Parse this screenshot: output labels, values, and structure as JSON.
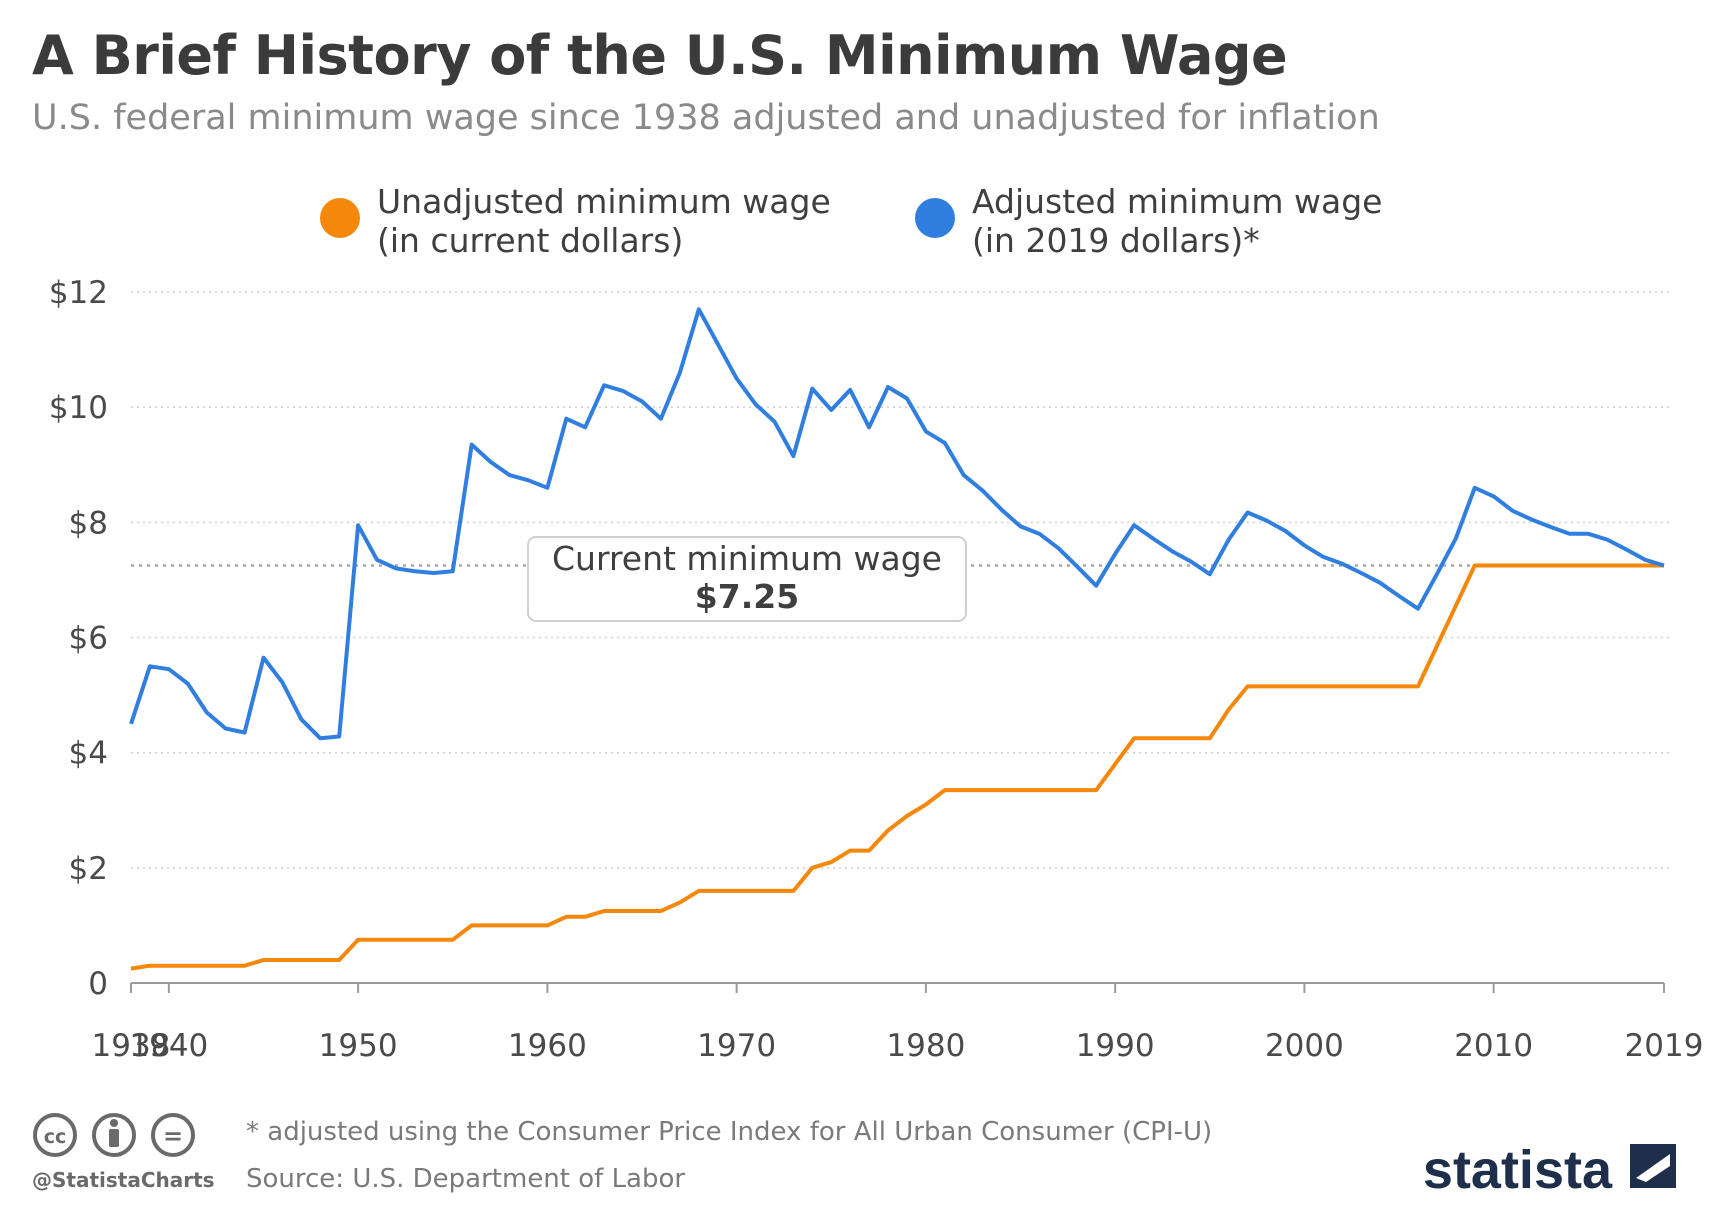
{
  "title": "A Brief History of the U.S. Minimum Wage",
  "subtitle": "U.S. federal minimum wage since 1938 adjusted and unadjusted for inflation",
  "colors": {
    "unadjusted": "#f5870a",
    "adjusted": "#2f7ee0",
    "grid": "#cfcfcf",
    "text": "#4a4a4a",
    "brand": "#1d2f4b"
  },
  "chart_data": {
    "type": "line",
    "title": "A Brief History of the U.S. Minimum Wage",
    "xlabel": "",
    "ylabel": "",
    "xlim": [
      1938,
      2019
    ],
    "ylim": [
      0,
      12
    ],
    "y_ticks": [
      0,
      2,
      4,
      6,
      8,
      10,
      12
    ],
    "y_tick_labels": [
      "0",
      "$2",
      "$4",
      "$6",
      "$8",
      "$10",
      "$12"
    ],
    "x_ticks": [
      1938,
      1940,
      1950,
      1960,
      1970,
      1980,
      1990,
      2000,
      2010,
      2019
    ],
    "x_tick_labels": [
      "1938",
      "1940",
      "1950",
      "1960",
      "1970",
      "1980",
      "1990",
      "2000",
      "2010",
      "2019"
    ],
    "grid": "horizontal dotted",
    "legend_position": "top",
    "series": [
      {
        "name": "Unadjusted minimum wage (in current dollars)",
        "legend_lines": [
          "Unadjusted minimum wage",
          "(in current dollars)"
        ],
        "color": "#f5870a",
        "x": [
          1938,
          1939,
          1940,
          1941,
          1942,
          1943,
          1944,
          1945,
          1946,
          1947,
          1948,
          1949,
          1950,
          1951,
          1952,
          1953,
          1954,
          1955,
          1956,
          1957,
          1958,
          1959,
          1960,
          1961,
          1962,
          1963,
          1964,
          1965,
          1966,
          1967,
          1968,
          1969,
          1970,
          1971,
          1972,
          1973,
          1974,
          1975,
          1976,
          1977,
          1978,
          1979,
          1980,
          1981,
          1982,
          1983,
          1984,
          1985,
          1986,
          1987,
          1988,
          1989,
          1990,
          1991,
          1992,
          1993,
          1994,
          1995,
          1996,
          1997,
          1998,
          1999,
          2000,
          2001,
          2002,
          2003,
          2004,
          2005,
          2006,
          2007,
          2008,
          2009,
          2010,
          2011,
          2012,
          2013,
          2014,
          2015,
          2016,
          2017,
          2018,
          2019
        ],
        "values": [
          0.25,
          0.3,
          0.3,
          0.3,
          0.3,
          0.3,
          0.3,
          0.4,
          0.4,
          0.4,
          0.4,
          0.4,
          0.75,
          0.75,
          0.75,
          0.75,
          0.75,
          0.75,
          1.0,
          1.0,
          1.0,
          1.0,
          1.0,
          1.15,
          1.15,
          1.25,
          1.25,
          1.25,
          1.25,
          1.4,
          1.6,
          1.6,
          1.6,
          1.6,
          1.6,
          1.6,
          2.0,
          2.1,
          2.3,
          2.3,
          2.65,
          2.9,
          3.1,
          3.35,
          3.35,
          3.35,
          3.35,
          3.35,
          3.35,
          3.35,
          3.35,
          3.35,
          3.8,
          4.25,
          4.25,
          4.25,
          4.25,
          4.25,
          4.75,
          5.15,
          5.15,
          5.15,
          5.15,
          5.15,
          5.15,
          5.15,
          5.15,
          5.15,
          5.15,
          5.85,
          6.55,
          7.25,
          7.25,
          7.25,
          7.25,
          7.25,
          7.25,
          7.25,
          7.25,
          7.25,
          7.25,
          7.25
        ]
      },
      {
        "name": "Adjusted minimum wage (in 2019 dollars)*",
        "legend_lines": [
          "Adjusted minimum wage",
          "(in 2019 dollars)*"
        ],
        "color": "#2f7ee0",
        "x": [
          1938,
          1939,
          1940,
          1941,
          1942,
          1943,
          1944,
          1945,
          1946,
          1947,
          1948,
          1949,
          1950,
          1951,
          1952,
          1953,
          1954,
          1955,
          1956,
          1957,
          1958,
          1959,
          1960,
          1961,
          1962,
          1963,
          1964,
          1965,
          1966,
          1967,
          1968,
          1969,
          1970,
          1971,
          1972,
          1973,
          1974,
          1975,
          1976,
          1977,
          1978,
          1979,
          1980,
          1981,
          1982,
          1983,
          1984,
          1985,
          1986,
          1987,
          1988,
          1989,
          1990,
          1991,
          1992,
          1993,
          1994,
          1995,
          1996,
          1997,
          1998,
          1999,
          2000,
          2001,
          2002,
          2003,
          2004,
          2005,
          2006,
          2007,
          2008,
          2009,
          2010,
          2011,
          2012,
          2013,
          2014,
          2015,
          2016,
          2017,
          2018,
          2019
        ],
        "values": [
          4.5,
          5.5,
          5.45,
          5.2,
          4.7,
          4.42,
          4.35,
          5.65,
          5.22,
          4.58,
          4.25,
          4.28,
          7.95,
          7.35,
          7.2,
          7.15,
          7.12,
          7.15,
          9.35,
          9.05,
          8.82,
          8.73,
          8.6,
          9.8,
          9.65,
          10.38,
          10.28,
          10.1,
          9.8,
          10.6,
          11.7,
          11.1,
          10.5,
          10.05,
          9.75,
          9.15,
          10.32,
          9.95,
          10.3,
          9.65,
          10.35,
          10.15,
          9.58,
          9.38,
          8.82,
          8.55,
          8.22,
          7.93,
          7.8,
          7.55,
          7.23,
          6.9,
          7.45,
          7.95,
          7.72,
          7.5,
          7.32,
          7.1,
          7.7,
          8.17,
          8.03,
          7.85,
          7.6,
          7.4,
          7.28,
          7.12,
          6.95,
          6.72,
          6.5,
          7.1,
          7.72,
          8.6,
          8.45,
          8.2,
          8.05,
          7.92,
          7.8,
          7.8,
          7.7,
          7.53,
          7.35,
          7.25
        ]
      }
    ],
    "annotation": {
      "label": "Current minimum wage",
      "value_label": "$7.25",
      "value": 7.25
    }
  },
  "footer": {
    "note": "* adjusted using the Consumer Price Index for All Urban Consumer (CPI-U)",
    "source": "Source: U.S. Department of Labor",
    "handle": "@StatistaCharts",
    "license_icons": [
      "cc-icon",
      "attribution-icon",
      "no-derivatives-icon"
    ],
    "license_glyphs": [
      "cc",
      "="
    ],
    "brand": "statista"
  }
}
